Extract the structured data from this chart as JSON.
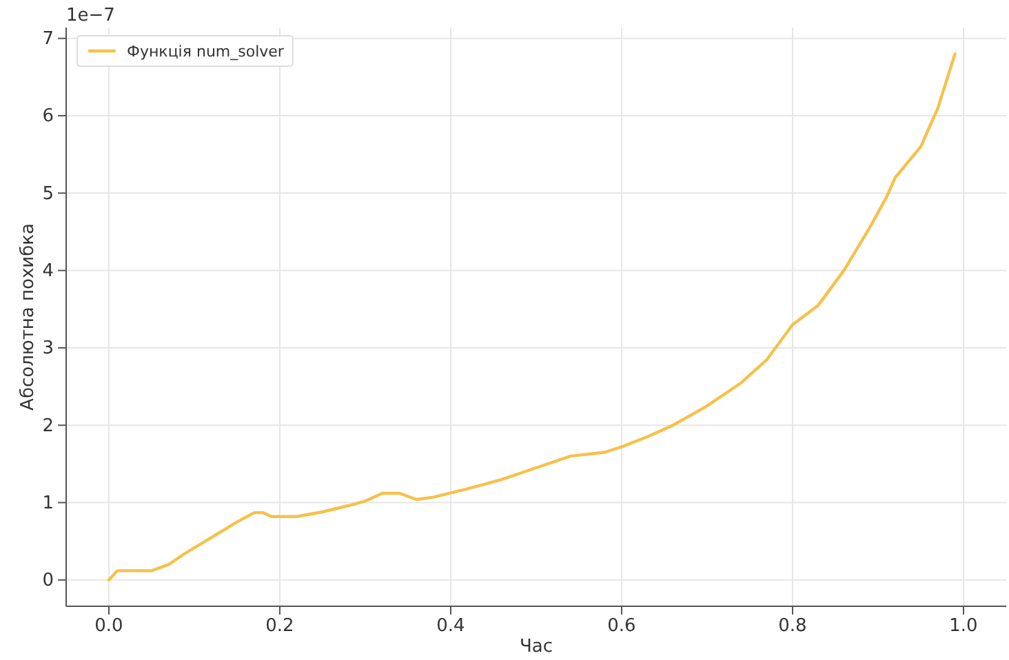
{
  "chart_data": {
    "type": "line",
    "xlabel": "Час",
    "ylabel": "Абсолютна похибка",
    "annotations": [
      "1e−7"
    ],
    "x": [
      0.0,
      0.01,
      0.03,
      0.05,
      0.07,
      0.09,
      0.12,
      0.15,
      0.17,
      0.18,
      0.19,
      0.22,
      0.25,
      0.28,
      0.3,
      0.32,
      0.34,
      0.36,
      0.38,
      0.42,
      0.46,
      0.5,
      0.54,
      0.58,
      0.6,
      0.63,
      0.66,
      0.7,
      0.74,
      0.77,
      0.8,
      0.83,
      0.86,
      0.89,
      0.91,
      0.92,
      0.95,
      0.97,
      0.99
    ],
    "series": [
      {
        "name": "Функція num_solver",
        "color": "#f6c14b",
        "values": [
          0.0,
          0.12,
          0.12,
          0.12,
          0.2,
          0.35,
          0.55,
          0.75,
          0.87,
          0.87,
          0.82,
          0.82,
          0.88,
          0.96,
          1.02,
          1.12,
          1.12,
          1.04,
          1.07,
          1.18,
          1.3,
          1.45,
          1.6,
          1.65,
          1.72,
          1.85,
          2.0,
          2.25,
          2.55,
          2.85,
          3.3,
          3.55,
          4.0,
          4.55,
          4.95,
          5.2,
          5.6,
          6.1,
          6.8
        ]
      }
    ],
    "xlim": [
      -0.05,
      1.05
    ],
    "ylim": [
      -0.34,
      7.14
    ],
    "xticks": [
      {
        "value": 0,
        "label": "0.0"
      },
      0.2,
      0.4,
      0.6,
      0.8,
      {
        "value": 1,
        "label": "1.0"
      }
    ],
    "yticks": [
      0,
      1,
      2,
      3,
      4,
      5,
      6,
      7
    ],
    "grid": true,
    "legend": "top left",
    "marker": "none",
    "line_style": "solid"
  }
}
